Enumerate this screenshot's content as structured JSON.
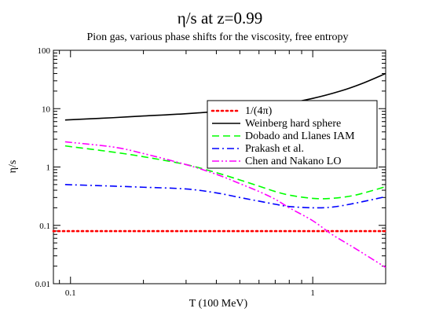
{
  "chart_data": {
    "type": "line",
    "title": "η/s  at z=0.99",
    "subtitle": "Pion gas, various phase shifts for the viscosity, free entropy",
    "xlabel": "T (100 MeV)",
    "ylabel": "η/s",
    "xscale": "log",
    "yscale": "log",
    "xlim": [
      0.085,
      2.0
    ],
    "ylim": [
      0.01,
      100
    ],
    "xticks": [
      {
        "value": 0.1,
        "label": "0.1"
      },
      {
        "value": 1,
        "label": "1"
      }
    ],
    "yticks": [
      {
        "value": 0.01,
        "label": "0.01"
      },
      {
        "value": 0.1,
        "label": "0.1"
      },
      {
        "value": 1,
        "label": "1"
      },
      {
        "value": 10,
        "label": "10"
      },
      {
        "value": 100,
        "label": "100"
      }
    ],
    "grid": false,
    "legend_position": "center-right",
    "series": [
      {
        "name": "1/(4π)",
        "color": "#ff0000",
        "dash": "dotted",
        "x": [
          0.085,
          2.0
        ],
        "y": [
          0.0796,
          0.0796
        ]
      },
      {
        "name": "Weinberg hard sphere",
        "color": "#000000",
        "dash": "solid",
        "x": [
          0.095,
          0.15,
          0.2,
          0.3,
          0.5,
          0.7,
          1.0,
          1.3,
          1.6,
          2.0
        ],
        "y": [
          6.4,
          7.0,
          7.5,
          8.2,
          9.6,
          11.3,
          15.0,
          20.0,
          27.0,
          40.0
        ]
      },
      {
        "name": "Dobado  and Llanes IAM",
        "color": "#00ff00",
        "dash": "dashed",
        "x": [
          0.095,
          0.15,
          0.2,
          0.3,
          0.4,
          0.5,
          0.6,
          0.7,
          0.8,
          1.0,
          1.2,
          1.5,
          2.0
        ],
        "y": [
          2.3,
          1.8,
          1.5,
          1.1,
          0.8,
          0.6,
          0.47,
          0.38,
          0.33,
          0.29,
          0.29,
          0.33,
          0.46
        ]
      },
      {
        "name": "Prakash et al.",
        "color": "#0000ff",
        "dash": "dashdot",
        "x": [
          0.095,
          0.15,
          0.2,
          0.3,
          0.4,
          0.5,
          0.6,
          0.7,
          0.8,
          1.0,
          1.2,
          1.5,
          2.0
        ],
        "y": [
          0.5,
          0.47,
          0.45,
          0.42,
          0.36,
          0.3,
          0.26,
          0.23,
          0.21,
          0.2,
          0.205,
          0.24,
          0.31
        ]
      },
      {
        "name": "Chen and Nakano LO",
        "color": "#ff00ff",
        "dash": "dashdotdot",
        "x": [
          0.095,
          0.15,
          0.2,
          0.3,
          0.4,
          0.5,
          0.6,
          0.7,
          0.8,
          1.0,
          1.2,
          1.5,
          2.0
        ],
        "y": [
          2.7,
          2.2,
          1.7,
          1.1,
          0.75,
          0.52,
          0.38,
          0.28,
          0.2,
          0.12,
          0.07,
          0.04,
          0.019
        ]
      }
    ]
  }
}
